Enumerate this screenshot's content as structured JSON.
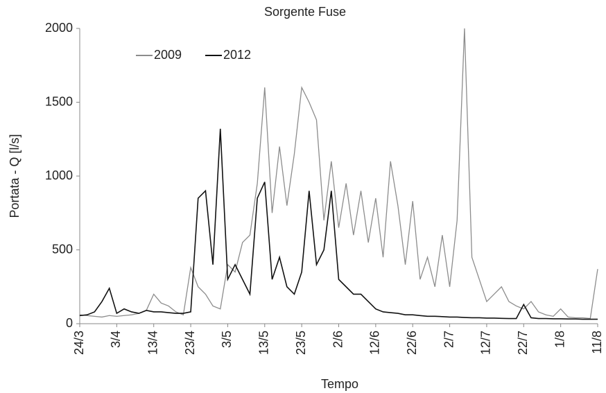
{
  "chart_data": {
    "type": "line",
    "title": "Sorgente Fuse",
    "x_label": "Tempo",
    "y_label": "Portata - Q [l/s]",
    "x": [
      0,
      2,
      4,
      6,
      8,
      10,
      12,
      14,
      16,
      18,
      20,
      22,
      24,
      26,
      28,
      30,
      32,
      34,
      36,
      38,
      40,
      42,
      44,
      46,
      48,
      50,
      52,
      54,
      56,
      58,
      60,
      62,
      64,
      66,
      68,
      70,
      72,
      74,
      76,
      78,
      80,
      82,
      84,
      86,
      88,
      90,
      92,
      94,
      96,
      98,
      100,
      102,
      104,
      106,
      108,
      110,
      112,
      114,
      116,
      118,
      120,
      122,
      124,
      126,
      128,
      130,
      132,
      134,
      136,
      138,
      140
    ],
    "series": [
      {
        "name": "2009",
        "color": "#8c8c8c",
        "values": [
          60,
          55,
          50,
          45,
          55,
          50,
          55,
          60,
          70,
          90,
          200,
          140,
          120,
          80,
          60,
          380,
          250,
          200,
          120,
          100,
          400,
          350,
          550,
          600,
          950,
          1600,
          750,
          1200,
          800,
          1150,
          1600,
          1500,
          1380,
          700,
          1100,
          650,
          950,
          600,
          900,
          550,
          850,
          450,
          1100,
          800,
          400,
          830,
          300,
          450,
          250,
          600,
          250,
          700,
          2000,
          450,
          300,
          150,
          200,
          250,
          150,
          120,
          100,
          150,
          80,
          60,
          50,
          100,
          45,
          40,
          40,
          35,
          370
        ]
      },
      {
        "name": "2012",
        "color": "#111111",
        "values": [
          55,
          60,
          80,
          150,
          240,
          70,
          100,
          80,
          70,
          90,
          80,
          80,
          75,
          70,
          70,
          80,
          850,
          900,
          400,
          1320,
          300,
          400,
          300,
          200,
          850,
          960,
          300,
          450,
          250,
          200,
          350,
          900,
          400,
          500,
          900,
          300,
          250,
          200,
          200,
          150,
          100,
          80,
          75,
          70,
          60,
          60,
          55,
          50,
          50,
          48,
          45,
          45,
          42,
          40,
          40,
          38,
          38,
          36,
          35,
          35,
          130,
          40,
          35,
          35,
          33,
          33,
          32,
          32,
          30,
          30,
          30
        ]
      }
    ],
    "xlim": [
      0,
      140
    ],
    "xticks": [
      {
        "value": 0,
        "label": "24/3"
      },
      {
        "value": 10,
        "label": "3/4"
      },
      {
        "value": 20,
        "label": "13/4"
      },
      {
        "value": 30,
        "label": "23/4"
      },
      {
        "value": 40,
        "label": "3/5"
      },
      {
        "value": 50,
        "label": "13/5"
      },
      {
        "value": 60,
        "label": "23/5"
      },
      {
        "value": 70,
        "label": "2/6"
      },
      {
        "value": 80,
        "label": "12/6"
      },
      {
        "value": 90,
        "label": "22/6"
      },
      {
        "value": 100,
        "label": "2/7"
      },
      {
        "value": 110,
        "label": "12/7"
      },
      {
        "value": 120,
        "label": "22/7"
      },
      {
        "value": 130,
        "label": "1/8"
      },
      {
        "value": 140,
        "label": "11/8"
      }
    ],
    "ylim": [
      0,
      2000
    ],
    "yticks": [
      0,
      500,
      1000,
      1500,
      2000
    ],
    "grid": false
  }
}
